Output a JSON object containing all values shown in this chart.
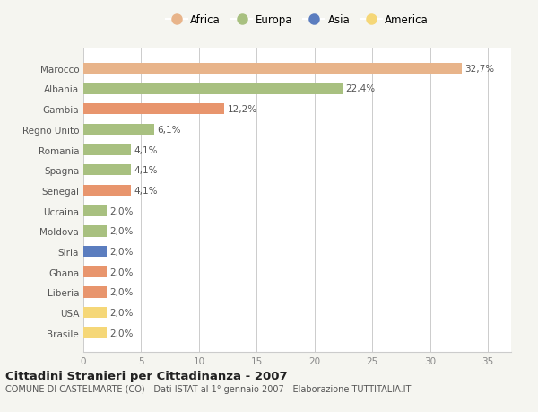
{
  "categories": [
    "Brasile",
    "USA",
    "Liberia",
    "Ghana",
    "Siria",
    "Moldova",
    "Ucraina",
    "Senegal",
    "Spagna",
    "Romania",
    "Regno Unito",
    "Gambia",
    "Albania",
    "Marocco"
  ],
  "values": [
    2.0,
    2.0,
    2.0,
    2.0,
    2.0,
    2.0,
    2.0,
    4.1,
    4.1,
    4.1,
    6.1,
    12.2,
    22.4,
    32.7
  ],
  "colors": [
    "#f5d778",
    "#f5d778",
    "#e8956d",
    "#e8956d",
    "#5b7dbf",
    "#a8c080",
    "#a8c080",
    "#e8956d",
    "#a8c080",
    "#a8c080",
    "#a8c080",
    "#e8956d",
    "#a8c080",
    "#e8b48a"
  ],
  "labels": [
    "2,0%",
    "2,0%",
    "2,0%",
    "2,0%",
    "2,0%",
    "2,0%",
    "2,0%",
    "4,1%",
    "4,1%",
    "4,1%",
    "6,1%",
    "12,2%",
    "22,4%",
    "32,7%"
  ],
  "legend": [
    {
      "label": "Africa",
      "color": "#e8b48a"
    },
    {
      "label": "Europa",
      "color": "#a8c080"
    },
    {
      "label": "Asia",
      "color": "#5b7dbf"
    },
    {
      "label": "America",
      "color": "#f5d778"
    }
  ],
  "title": "Cittadini Stranieri per Cittadinanza - 2007",
  "subtitle": "COMUNE DI CASTELMARTE (CO) - Dati ISTAT al 1° gennaio 2007 - Elaborazione TUTTITALIA.IT",
  "xlim": [
    0,
    37
  ],
  "xticks": [
    0,
    5,
    10,
    15,
    20,
    25,
    30,
    35
  ],
  "bg_color": "#f5f5f0",
  "bar_bg_color": "#ffffff"
}
